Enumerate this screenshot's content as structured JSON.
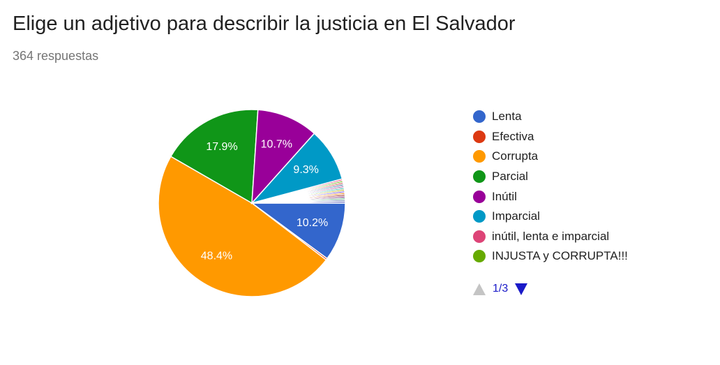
{
  "header": {
    "title": "Elige un adjetivo para describir la justicia en El Salvador",
    "subtitle": "364 respuestas"
  },
  "chart_data": {
    "type": "pie",
    "title": "Elige un adjetivo para describir la justicia en El Salvador",
    "total_label": "364 respuestas",
    "slices": [
      {
        "name": "Lenta",
        "value": 10.2,
        "label": "10.2%",
        "color": "#3366cc"
      },
      {
        "name": "Efectiva",
        "value": 0.3,
        "label": "",
        "color": "#dc3912"
      },
      {
        "name": "Corrupta",
        "value": 48.4,
        "label": "48.4%",
        "color": "#ff9900"
      },
      {
        "name": "Parcial",
        "value": 17.9,
        "label": "17.9%",
        "color": "#109618"
      },
      {
        "name": "Inútil",
        "value": 10.7,
        "label": "10.7%",
        "color": "#990099"
      },
      {
        "name": "Imparcial",
        "value": 9.3,
        "label": "9.3%",
        "color": "#0099c6"
      },
      {
        "name": "inútil, lenta e imparcial",
        "value": 0.3,
        "label": "",
        "color": "#dd4477"
      },
      {
        "name": "INJUSTA y CORRUPTA!!!",
        "value": 0.3,
        "label": "",
        "color": "#66aa00"
      },
      {
        "name": "",
        "value": 0.3,
        "label": "",
        "color": "#b82e2e"
      },
      {
        "name": "",
        "value": 0.3,
        "label": "",
        "color": "#316395"
      },
      {
        "name": "",
        "value": 0.3,
        "label": "",
        "color": "#994499"
      },
      {
        "name": "",
        "value": 0.3,
        "label": "",
        "color": "#22aa99"
      },
      {
        "name": "",
        "value": 0.3,
        "label": "",
        "color": "#aaaa11"
      },
      {
        "name": "",
        "value": 0.3,
        "label": "",
        "color": "#6633cc"
      },
      {
        "name": "",
        "value": 0.3,
        "label": "",
        "color": "#e67300"
      },
      {
        "name": "",
        "value": 0.3,
        "label": "",
        "color": "#8b0707"
      },
      {
        "name": "",
        "value": 0.3,
        "label": "",
        "color": "#651067"
      },
      {
        "name": "",
        "value": 0.3,
        "label": "",
        "color": "#329262"
      },
      {
        "name": "",
        "value": 0.3,
        "label": "",
        "color": "#5574a6"
      },
      {
        "name": "",
        "value": 0.3,
        "label": "",
        "color": "#3b3eac"
      }
    ],
    "legend_position": "right"
  },
  "legend": {
    "items": [
      {
        "label": "Lenta",
        "color": "#3366cc"
      },
      {
        "label": "Efectiva",
        "color": "#dc3912"
      },
      {
        "label": "Corrupta",
        "color": "#ff9900"
      },
      {
        "label": "Parcial",
        "color": "#109618"
      },
      {
        "label": "Inútil",
        "color": "#990099"
      },
      {
        "label": "Imparcial",
        "color": "#0099c6"
      },
      {
        "label": "inútil, lenta e imparcial",
        "color": "#dd4477"
      },
      {
        "label": "INJUSTA y CORRUPTA!!!",
        "color": "#66aa00"
      }
    ]
  },
  "pager": {
    "page_label": "1/3",
    "prev_icon": "triangle-up-icon",
    "next_icon": "triangle-down-icon",
    "prev_color": "#c4c4c4",
    "next_color": "#1a1ac8"
  }
}
